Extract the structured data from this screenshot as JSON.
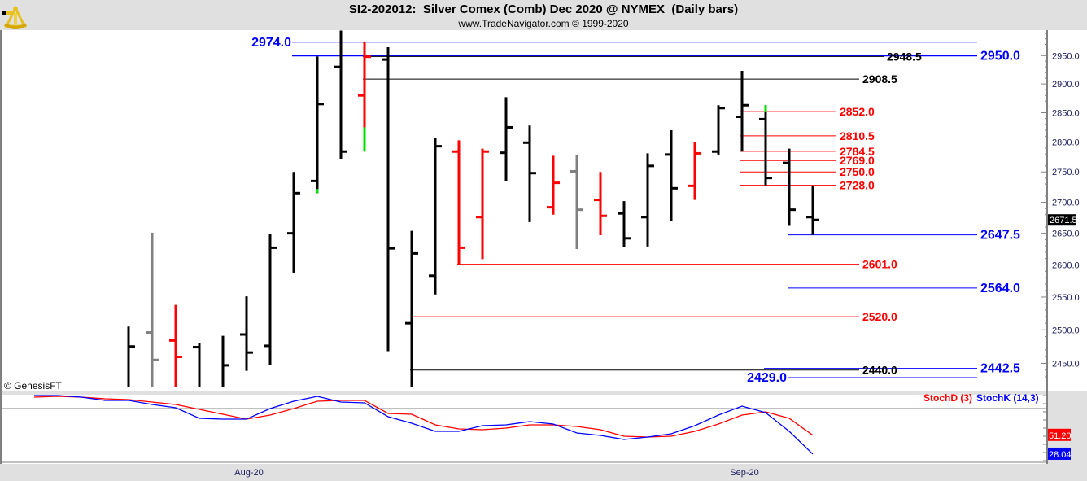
{
  "header": {
    "title": "SI2-202012:  Silver Comex (Comb) Dec 2020 @ NYMEX  (Daily bars)",
    "subtitle": "www.TradeNavigator.com © 1999-2020",
    "logo_icon": "sextant-icon"
  },
  "copyright": "© GenesisFT",
  "colors": {
    "up": "#000000",
    "down": "#ff0000",
    "neutral": "#808080",
    "highlight": "#00e000",
    "blue": "#0000ff",
    "stochD": "#ff0000",
    "stochK": "#0000ff"
  },
  "chart_data": [
    {
      "type": "bar",
      "subtype": "ohlc",
      "title": "SI2-202012:  Silver Comex (Comb) Dec 2020 @ NYMEX  (Daily bars)",
      "y_scale": "log",
      "ylim": [
        2420,
        2995
      ],
      "y_ticks": [
        "2450.0",
        "2500.0",
        "2550.0",
        "2600.0",
        "2650.0",
        "2700.0",
        "2750.0",
        "2800.0",
        "2850.0",
        "2900.0",
        "2950.0"
      ],
      "x_tick_labels": [
        {
          "label": "Aug-20",
          "bar": 5
        },
        {
          "label": "Sep-20",
          "bar": 26
        }
      ],
      "last_price": "2671.5",
      "bars": [
        {
          "o": null,
          "h": 2505,
          "l": 2415,
          "c": 2475,
          "color": "up"
        },
        {
          "o": 2496,
          "h": 2651,
          "l": 2415,
          "c": 2455,
          "color": "neutral"
        },
        {
          "o": 2484,
          "h": 2538,
          "l": 2415,
          "c": 2459.5,
          "color": "down"
        },
        {
          "o": 2474,
          "h": 2480,
          "l": 2415,
          "c": null,
          "color": "up"
        },
        {
          "o": null,
          "h": 2491,
          "l": 2415,
          "c": 2447,
          "color": "up"
        },
        {
          "o": 2493,
          "h": 2551,
          "l": 2439,
          "c": 2466,
          "color": "up"
        },
        {
          "o": 2476,
          "h": 2649,
          "l": 2448,
          "c": 2627,
          "color": "up"
        },
        {
          "o": 2650,
          "h": 2750,
          "l": 2587,
          "c": 2715,
          "color": "up"
        },
        {
          "o": 2735,
          "h": 2948.5,
          "l": 2715,
          "c": 2865,
          "color": "up",
          "green": [
            2715,
            2722
          ]
        },
        {
          "o": 2930,
          "h": 2995,
          "l": 2772,
          "c": 2784,
          "color": "up"
        },
        {
          "o": 2880,
          "h": 2974,
          "l": 2784,
          "c": 2948,
          "color": "down",
          "green": [
            2784,
            2825
          ]
        },
        {
          "o": 2943,
          "h": 2965,
          "l": 2468,
          "c": 2626,
          "color": "up"
        },
        {
          "o": 2510,
          "h": 2654,
          "l": 2415,
          "c": 2618,
          "color": "up"
        },
        {
          "o": 2583,
          "h": 2807,
          "l": 2554,
          "c": 2793,
          "color": "up"
        },
        {
          "o": 2784,
          "h": 2803,
          "l": 2601,
          "c": 2627,
          "color": "down"
        },
        {
          "o": 2676,
          "h": 2789,
          "l": 2609,
          "c": 2784,
          "color": "down"
        },
        {
          "o": 2782,
          "h": 2877,
          "l": 2735,
          "c": 2825,
          "color": "up"
        },
        {
          "o": 2799,
          "h": 2828,
          "l": 2668,
          "c": 2748,
          "color": "up"
        },
        {
          "o": 2692,
          "h": 2777,
          "l": 2680,
          "c": 2732,
          "color": "down"
        },
        {
          "o": 2751,
          "h": 2779,
          "l": 2625,
          "c": 2688,
          "color": "neutral"
        },
        {
          "o": 2704,
          "h": 2750,
          "l": 2647,
          "c": 2678,
          "color": "down"
        },
        {
          "o": 2682,
          "h": 2702,
          "l": 2628,
          "c": 2642,
          "color": "up"
        },
        {
          "o": 2676,
          "h": 2781,
          "l": 2629,
          "c": 2760,
          "color": "up"
        },
        {
          "o": 2779,
          "h": 2820,
          "l": 2670,
          "c": 2723,
          "color": "up"
        },
        {
          "o": 2727,
          "h": 2800,
          "l": 2704,
          "c": 2781,
          "color": "down"
        },
        {
          "o": 2784,
          "h": 2863,
          "l": 2779,
          "c": 2858,
          "color": "up"
        },
        {
          "o": 2843,
          "h": 2923,
          "l": 2784,
          "c": 2863,
          "color": "up"
        },
        {
          "o": 2839,
          "h": 2863,
          "l": 2728,
          "c": 2740,
          "color": "up",
          "green": [
            2852,
            2863
          ]
        },
        {
          "o": 2765,
          "h": 2789,
          "l": 2662,
          "c": 2688,
          "color": "up"
        },
        {
          "o": 2676,
          "h": 2726,
          "l": 2647.5,
          "c": 2671.5,
          "color": "up"
        }
      ],
      "levels": [
        {
          "value": 2974.0,
          "label": "2974.0",
          "color": "blue",
          "from_bar": 7,
          "to": "far",
          "label_side": "left",
          "big": true
        },
        {
          "value": 2950.0,
          "label": "2950.0",
          "color": "blue",
          "from_bar": 7,
          "to": "far",
          "label_side": "right",
          "big": true
        },
        {
          "value": 2948.5,
          "label": "2948.5",
          "color": "up",
          "from_bar": 10,
          "to": "mid2",
          "label_side": "right"
        },
        {
          "value": 2908.5,
          "label": "2908.5",
          "color": "up",
          "from_bar": 10,
          "to": "mid",
          "label_side": "right"
        },
        {
          "value": 2852.0,
          "label": "2852.0",
          "color": "down",
          "from_bar": 26,
          "to": "near",
          "label_side": "right"
        },
        {
          "value": 2810.5,
          "label": "2810.5",
          "color": "down",
          "from_bar": 26,
          "to": "near",
          "label_side": "right"
        },
        {
          "value": 2784.5,
          "label": "2784.5",
          "color": "down",
          "from_bar": 26,
          "to": "near",
          "label_side": "right"
        },
        {
          "value": 2769.0,
          "label": "2769.0",
          "color": "down",
          "from_bar": 26,
          "to": "near",
          "label_side": "right"
        },
        {
          "value": 2750.0,
          "label": "2750.0",
          "color": "down",
          "from_bar": 26,
          "to": "near",
          "label_side": "right"
        },
        {
          "value": 2728.0,
          "label": "2728.0",
          "color": "down",
          "from_bar": 26,
          "to": "near",
          "label_side": "right"
        },
        {
          "value": 2647.5,
          "label": "2647.5",
          "color": "blue",
          "from_bar": 28,
          "to": "far",
          "label_side": "right",
          "big": true
        },
        {
          "value": 2601.0,
          "label": "2601.0",
          "color": "down",
          "from_bar": 14,
          "to": "mid",
          "label_side": "right"
        },
        {
          "value": 2564.0,
          "label": "2564.0",
          "color": "blue",
          "from_bar": 28,
          "to": "far",
          "label_side": "right",
          "big": true
        },
        {
          "value": 2520.0,
          "label": "2520.0",
          "color": "down",
          "from_bar": 12,
          "to": "mid",
          "label_side": "right"
        },
        {
          "value": 2442.5,
          "label": "2442.5",
          "color": "blue",
          "from_bar": 27,
          "to": "far",
          "label_side": "right",
          "big": true
        },
        {
          "value": 2440.0,
          "label": "2440.0",
          "color": "up",
          "from_bar": 12,
          "to": "mid",
          "label_side": "right"
        },
        {
          "value": 2429.0,
          "label": "2429.0",
          "color": "blue",
          "from_bar": 28,
          "to": "far",
          "label_side": "left",
          "big": true
        }
      ]
    },
    {
      "type": "line",
      "title": "",
      "legend": "top-right",
      "series": [
        {
          "name": "StochD (3)",
          "color": "#ff0000",
          "last": "51.20",
          "values": [
            98,
            99,
            98,
            96,
            95,
            92,
            89,
            83,
            77,
            71,
            76,
            84,
            93,
            94,
            94,
            78,
            77,
            64,
            59,
            58,
            60,
            64,
            64,
            62,
            58,
            50,
            49,
            50,
            56,
            65,
            76,
            80,
            72,
            51.2
          ]
        },
        {
          "name": "StochK (14,3)",
          "color": "#0000ff",
          "last": "28.04",
          "values": [
            100,
            100,
            98,
            94,
            94,
            89,
            85,
            72,
            71,
            71,
            84,
            93,
            99,
            92,
            91,
            74,
            66,
            56,
            56,
            63,
            64,
            68,
            65,
            54,
            51,
            46,
            49,
            53,
            63,
            76,
            87,
            79,
            56,
            28.04
          ]
        }
      ]
    }
  ]
}
